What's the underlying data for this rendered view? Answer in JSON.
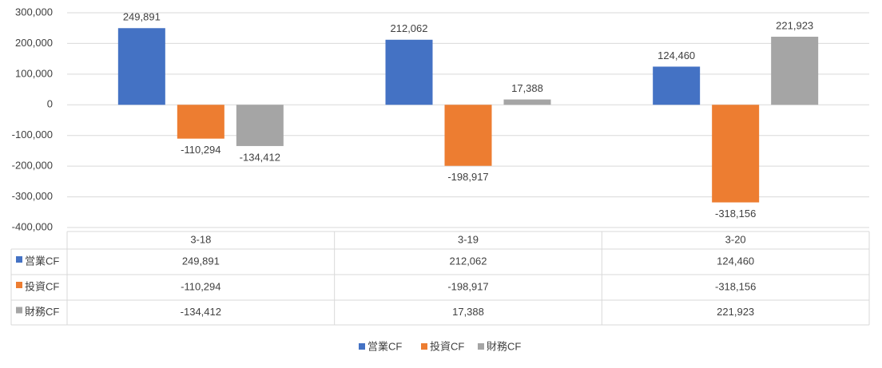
{
  "chart_data": {
    "type": "bar",
    "categories": [
      "3-18",
      "3-19",
      "3-20"
    ],
    "series": [
      {
        "name": "営業CF",
        "color": "#4472c4",
        "values": [
          249891,
          212062,
          124460
        ],
        "value_labels": [
          "249,891",
          "212,062",
          "124,460"
        ]
      },
      {
        "name": "投資CF",
        "color": "#ed7d31",
        "values": [
          -110294,
          -198917,
          -318156
        ],
        "value_labels": [
          "-110,294",
          "-198,917",
          "-318,156"
        ]
      },
      {
        "name": "財務CF",
        "color": "#a5a5a5",
        "values": [
          -134412,
          17388,
          221923
        ],
        "value_labels": [
          "-134,412",
          "17,388",
          "221,923"
        ]
      }
    ],
    "ylim": [
      -400000,
      300000
    ],
    "yticks": [
      {
        "value": -400000,
        "label": "-400,000"
      },
      {
        "value": -300000,
        "label": "-300,000"
      },
      {
        "value": -200000,
        "label": "-200,000"
      },
      {
        "value": -100000,
        "label": "-100,000"
      },
      0,
      {
        "value": 100000,
        "label": "100,000"
      },
      {
        "value": 200000,
        "label": "200,000"
      },
      {
        "value": 300000,
        "label": "300,000"
      }
    ],
    "grid": true,
    "data_table": true,
    "legend": "bottom"
  }
}
